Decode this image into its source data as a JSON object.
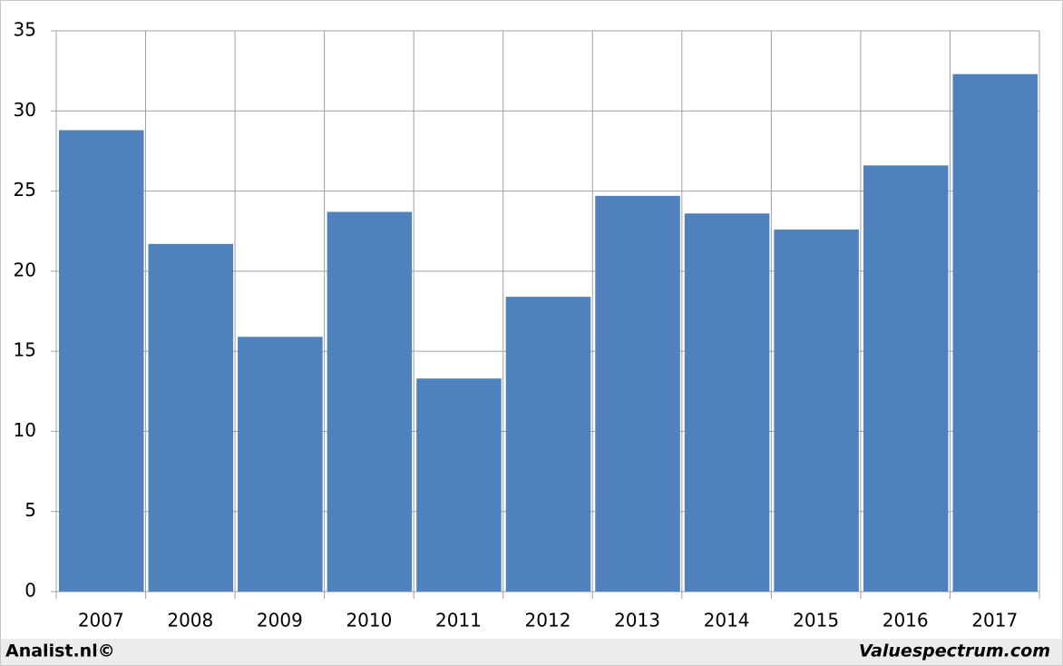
{
  "chart_data": {
    "type": "bar",
    "categories": [
      "2007",
      "2008",
      "2009",
      "2010",
      "2011",
      "2012",
      "2013",
      "2014",
      "2015",
      "2016",
      "2017"
    ],
    "values": [
      28.8,
      21.7,
      15.9,
      23.7,
      13.3,
      18.4,
      24.7,
      23.6,
      22.6,
      26.6,
      32.3
    ],
    "color": "#4f81bd",
    "ylim": [
      0,
      35
    ],
    "yticks": [
      0,
      5,
      10,
      15,
      20,
      25,
      30,
      35
    ],
    "grid": true,
    "source": "Analist.nl©",
    "watermark": "Valuespectrum.com"
  }
}
